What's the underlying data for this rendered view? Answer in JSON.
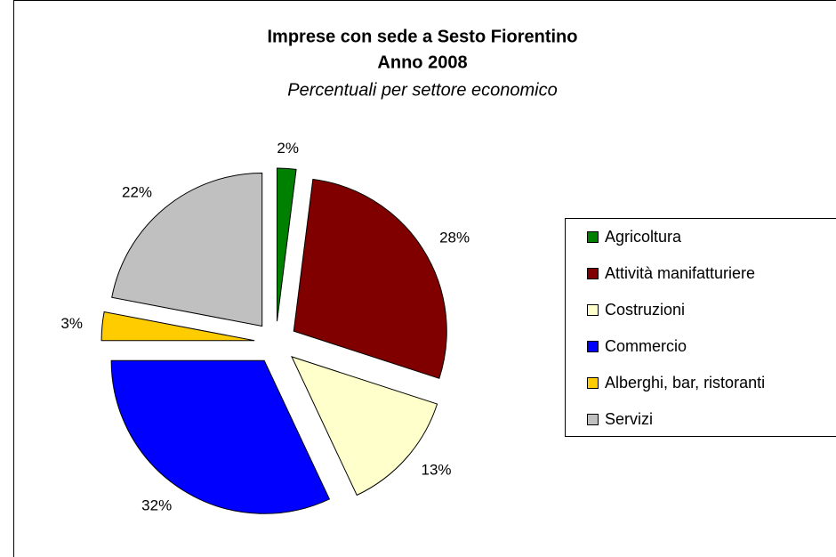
{
  "chart_data": {
    "type": "pie",
    "title": "Imprese con sede a Sesto Fiorentino",
    "subtitle": "Anno 2008",
    "caption": "Percentuali per settore economico",
    "categories": [
      "Agricoltura",
      "Attività manifatturiere",
      "Costruzioni",
      "Commercio",
      "Alberghi, bar, ristoranti",
      "Servizi"
    ],
    "values": [
      2,
      28,
      13,
      32,
      3,
      22
    ],
    "value_labels": [
      "2%",
      "28%",
      "13%",
      "32%",
      "3%",
      "22%"
    ],
    "colors": [
      "#008000",
      "#800000",
      "#ffffcc",
      "#0000ff",
      "#ffcc00",
      "#c0c0c0"
    ],
    "legend": "right"
  }
}
